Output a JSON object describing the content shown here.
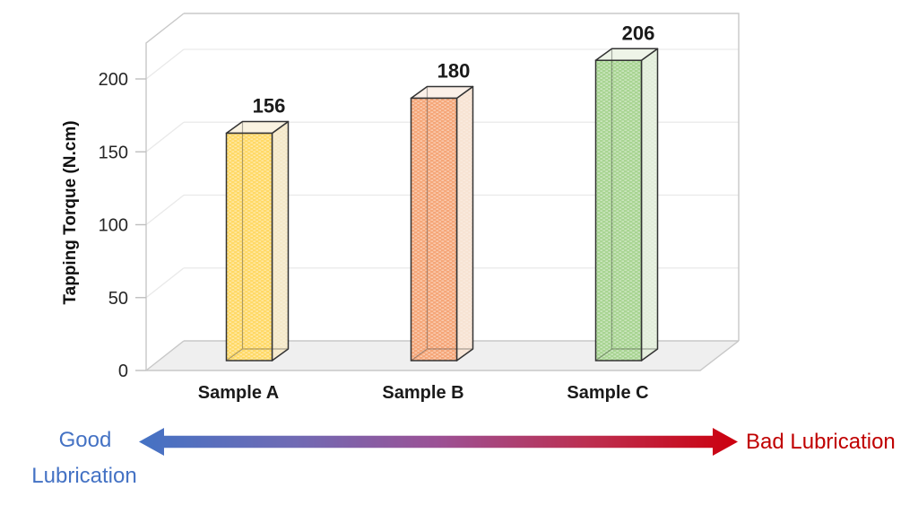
{
  "chart_data": {
    "type": "bar",
    "style": "3d-column",
    "categories": [
      "Sample A",
      "Sample B",
      "Sample C"
    ],
    "values": [
      156,
      180,
      206
    ],
    "data_labels": [
      "156",
      "180",
      "206"
    ],
    "title": "",
    "xlabel": "",
    "ylabel": "Tapping Torque (N.cm)",
    "ylim": [
      0,
      225
    ],
    "yticks": [
      0,
      50,
      100,
      150,
      200
    ],
    "grid": true,
    "legend": "none",
    "bar_styles": [
      {
        "name": "yellow",
        "front": "#FFD966",
        "side": "#F4E8C8",
        "top": "#FAF3E1"
      },
      {
        "name": "orange",
        "front": "#F5A678",
        "side": "#F7E3D3",
        "top": "#FBF0E8"
      },
      {
        "name": "green",
        "front": "#A8D492",
        "side": "#E2EDDA",
        "top": "#EEF4E8"
      }
    ]
  },
  "lubrication_scale": {
    "good_label_line1": "Good",
    "good_label_line2": "Lubrication",
    "bad_label": "Bad Lubrication",
    "good_color": "#4472C4",
    "bad_color": "#C00000",
    "arrow_gradient": [
      "#4472C4",
      "#6E6BB5",
      "#9C5195",
      "#BC2F50",
      "#CC000E"
    ]
  }
}
